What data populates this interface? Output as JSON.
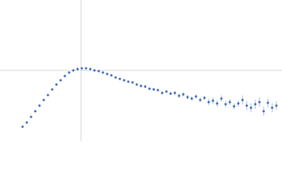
{
  "chart_data": {
    "type": "scatter",
    "xlim": [
      0,
      4
    ],
    "ylim": [
      0,
      2
    ],
    "crosshair": {
      "x": 1.15,
      "y": 1
    },
    "color": "#3a66b5",
    "error_color": "#9fb6dc",
    "series": [
      {
        "x": [
          0.32,
          0.38,
          0.44,
          0.5,
          0.56,
          0.62,
          0.68,
          0.74,
          0.8,
          0.86,
          0.92,
          0.98,
          1.04,
          1.1,
          1.16,
          1.22,
          1.28,
          1.34,
          1.4,
          1.46,
          1.52,
          1.58,
          1.64,
          1.7,
          1.76,
          1.82,
          1.88,
          1.94,
          2.0,
          2.06,
          2.12,
          2.18,
          2.24,
          2.3,
          2.36,
          2.42,
          2.48,
          2.54,
          2.6,
          2.66,
          2.72,
          2.78,
          2.84,
          2.9,
          2.96,
          3.02,
          3.08,
          3.14,
          3.2,
          3.26,
          3.32,
          3.38,
          3.44,
          3.5,
          3.56,
          3.62,
          3.68,
          3.74,
          3.8,
          3.86,
          3.92
        ],
        "values": [
          0.2,
          0.26,
          0.34,
          0.42,
          0.5,
          0.58,
          0.65,
          0.73,
          0.8,
          0.86,
          0.92,
          0.97,
          1.0,
          1.02,
          1.03,
          1.03,
          1.02,
          1.0,
          0.99,
          0.97,
          0.95,
          0.93,
          0.9,
          0.88,
          0.86,
          0.84,
          0.83,
          0.8,
          0.78,
          0.77,
          0.74,
          0.73,
          0.72,
          0.68,
          0.7,
          0.67,
          0.68,
          0.64,
          0.66,
          0.62,
          0.6,
          0.63,
          0.58,
          0.61,
          0.55,
          0.57,
          0.53,
          0.6,
          0.52,
          0.55,
          0.49,
          0.53,
          0.58,
          0.5,
          0.47,
          0.52,
          0.55,
          0.42,
          0.54,
          0.47,
          0.5
        ],
        "errors": [
          0.005,
          0.005,
          0.005,
          0.005,
          0.005,
          0.005,
          0.005,
          0.005,
          0.005,
          0.005,
          0.005,
          0.005,
          0.01,
          0.01,
          0.01,
          0.01,
          0.01,
          0.01,
          0.01,
          0.01,
          0.015,
          0.015,
          0.015,
          0.015,
          0.015,
          0.015,
          0.015,
          0.015,
          0.02,
          0.02,
          0.02,
          0.02,
          0.02,
          0.02,
          0.02,
          0.02,
          0.03,
          0.03,
          0.03,
          0.03,
          0.03,
          0.03,
          0.03,
          0.03,
          0.045,
          0.045,
          0.045,
          0.045,
          0.045,
          0.045,
          0.045,
          0.045,
          0.065,
          0.065,
          0.065,
          0.065,
          0.065,
          0.065,
          0.065,
          0.065,
          0.065
        ]
      }
    ]
  }
}
